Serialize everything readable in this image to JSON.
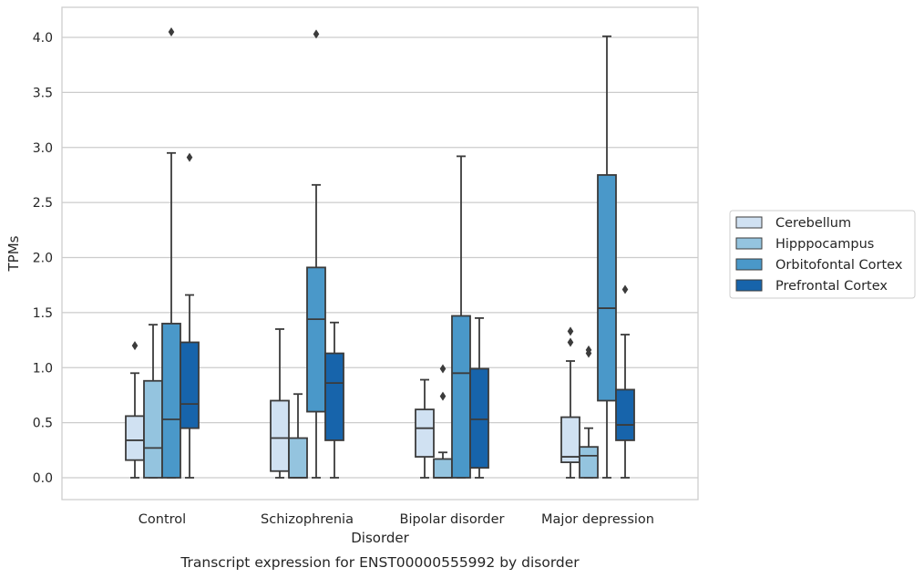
{
  "chart_data": {
    "type": "box",
    "title": "Transcript expression for ENST00000555992 by disorder",
    "xlabel": "Disorder",
    "ylabel": "TPMs",
    "ylim": [
      -0.2,
      4.27
    ],
    "yticks": [
      "0.0",
      "0.5",
      "1.0",
      "1.5",
      "2.0",
      "2.5",
      "3.0",
      "3.5",
      "4.0"
    ],
    "grid": true,
    "legend_position": "right",
    "categories": [
      "Control",
      "Schizophrenia",
      "Bipolar disorder",
      "Major depression"
    ],
    "series": [
      {
        "name": "Cerebellum",
        "color": "#d0e1f2",
        "boxes": [
          {
            "whislo": 0.0,
            "q1": 0.16,
            "med": 0.34,
            "q3": 0.56,
            "whishi": 0.95,
            "fliers": [
              1.2
            ]
          },
          {
            "whislo": 0.0,
            "q1": 0.06,
            "med": 0.36,
            "q3": 0.7,
            "whishi": 1.35,
            "fliers": []
          },
          {
            "whislo": 0.0,
            "q1": 0.19,
            "med": 0.45,
            "q3": 0.62,
            "whishi": 0.89,
            "fliers": []
          },
          {
            "whislo": 0.0,
            "q1": 0.14,
            "med": 0.19,
            "q3": 0.55,
            "whishi": 1.06,
            "fliers": [
              1.23,
              1.33
            ]
          }
        ]
      },
      {
        "name": "Hipppocampus",
        "color": "#94c4df",
        "boxes": [
          {
            "whislo": 0.0,
            "q1": 0.0,
            "med": 0.27,
            "q3": 0.88,
            "whishi": 1.39,
            "fliers": []
          },
          {
            "whislo": 0.0,
            "q1": 0.0,
            "med": 0.0,
            "q3": 0.36,
            "whishi": 0.76,
            "fliers": []
          },
          {
            "whislo": 0.0,
            "q1": 0.0,
            "med": 0.0,
            "q3": 0.17,
            "whishi": 0.23,
            "fliers": [
              0.74,
              0.99
            ]
          },
          {
            "whislo": 0.0,
            "q1": 0.0,
            "med": 0.2,
            "q3": 0.28,
            "whishi": 0.45,
            "fliers": [
              1.13,
              1.16
            ]
          }
        ]
      },
      {
        "name": "Orbitofontal Cortex",
        "color": "#4a98c9",
        "boxes": [
          {
            "whislo": 0.0,
            "q1": 0.0,
            "med": 0.53,
            "q3": 1.4,
            "whishi": 2.95,
            "fliers": [
              4.05
            ]
          },
          {
            "whislo": 0.0,
            "q1": 0.6,
            "med": 1.44,
            "q3": 1.91,
            "whishi": 2.66,
            "fliers": [
              4.03
            ]
          },
          {
            "whislo": 0.0,
            "q1": 0.0,
            "med": 0.95,
            "q3": 1.47,
            "whishi": 2.92,
            "fliers": []
          },
          {
            "whislo": 0.0,
            "q1": 0.7,
            "med": 1.54,
            "q3": 2.75,
            "whishi": 4.01,
            "fliers": []
          }
        ]
      },
      {
        "name": "Prefrontal Cortex",
        "color": "#1764ab",
        "boxes": [
          {
            "whislo": 0.0,
            "q1": 0.45,
            "med": 0.67,
            "q3": 1.23,
            "whishi": 1.66,
            "fliers": [
              2.91
            ]
          },
          {
            "whislo": 0.0,
            "q1": 0.34,
            "med": 0.86,
            "q3": 1.13,
            "whishi": 1.41,
            "fliers": []
          },
          {
            "whislo": 0.0,
            "q1": 0.09,
            "med": 0.53,
            "q3": 0.99,
            "whishi": 1.45,
            "fliers": []
          },
          {
            "whislo": 0.0,
            "q1": 0.34,
            "med": 0.48,
            "q3": 0.8,
            "whishi": 1.3,
            "fliers": [
              1.71
            ]
          }
        ]
      }
    ]
  }
}
